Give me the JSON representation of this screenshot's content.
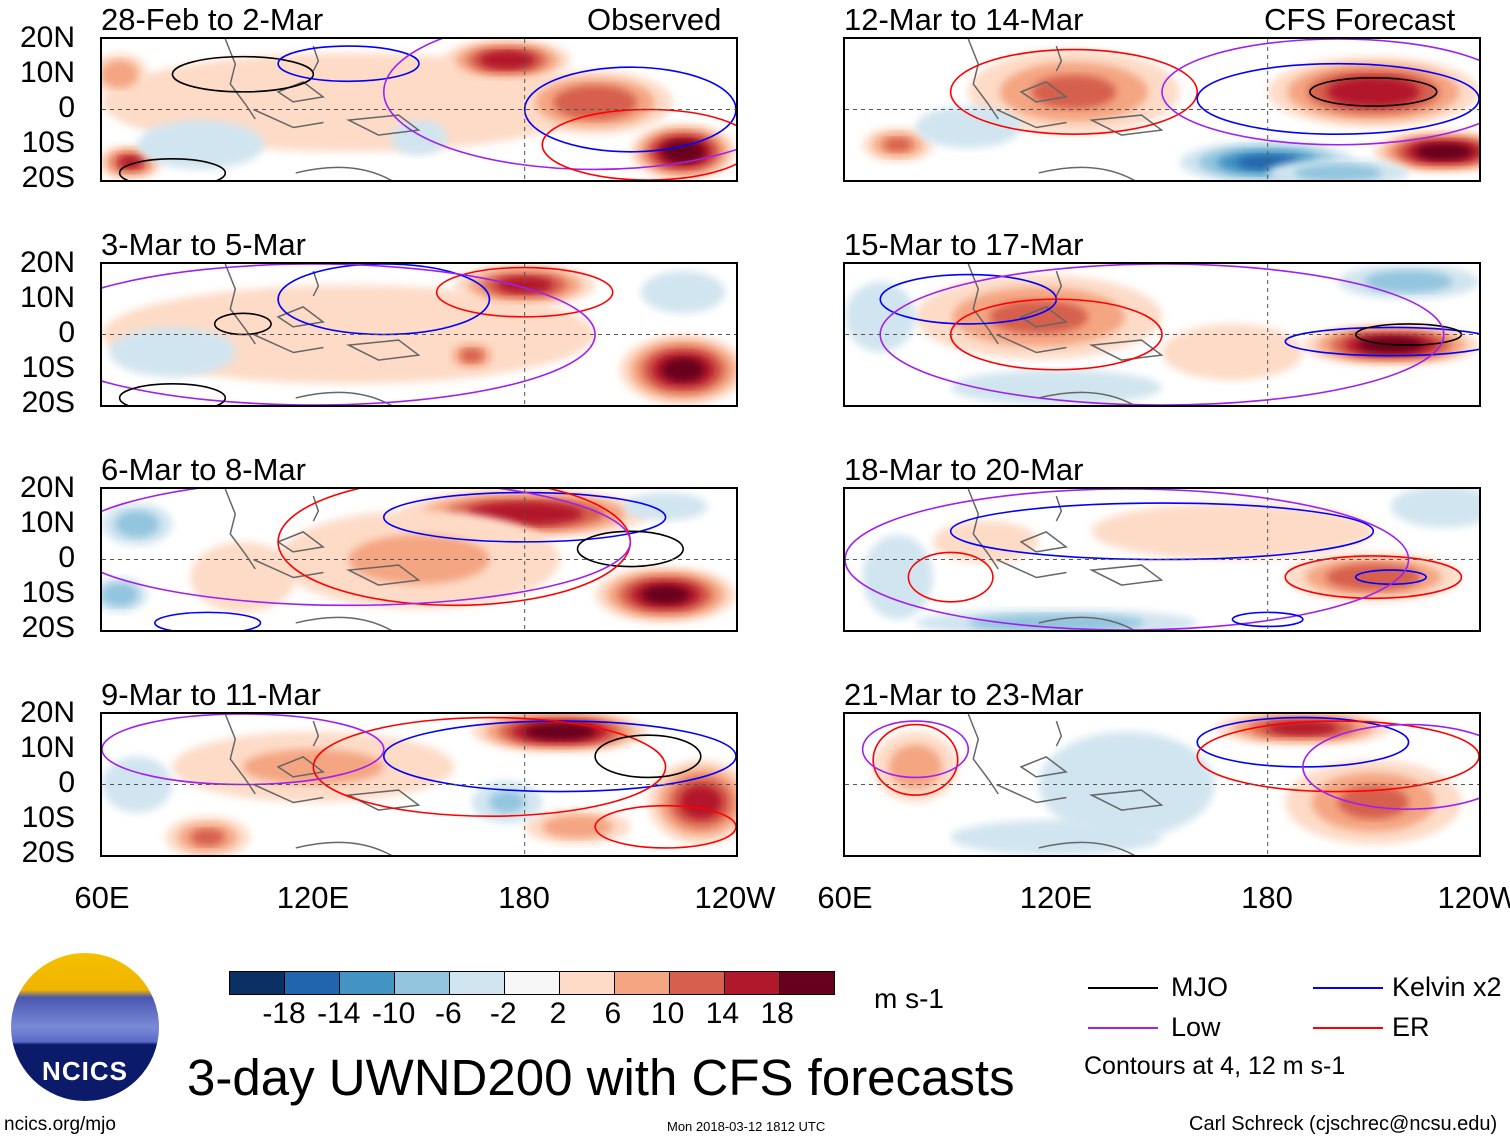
{
  "title": "3-day UWND200 with CFS forecasts",
  "units": "m s-1",
  "logo_text": "NCICS",
  "site": "ncics.org/mjo",
  "timestamp": "Mon 2018-03-12 1812 UTC",
  "author": "Carl Schreck (cjschrec@ncsu.edu)",
  "contour_note": "Contours at 4, 12 m s-1",
  "headers": {
    "observed": "Observed",
    "forecast": "CFS Forecast"
  },
  "legend": [
    {
      "label": "MJO",
      "color": "#000000"
    },
    {
      "label": "Kelvin x2",
      "color": "#0000ff"
    },
    {
      "label": "Low",
      "color": "#a020f0"
    },
    {
      "label": "ER",
      "color": "#ff0000"
    }
  ],
  "colorbar": {
    "labels": [
      "-18",
      "-14",
      "-10",
      "-6",
      "-2",
      "2",
      "6",
      "10",
      "14",
      "18"
    ],
    "colors": [
      "#0a2f62",
      "#2166ac",
      "#4393c3",
      "#92c5de",
      "#d1e5f0",
      "#f7f7f7",
      "#fddbc7",
      "#f4a582",
      "#d6604d",
      "#b2182b",
      "#67001f"
    ]
  },
  "lat_labels": [
    "20N",
    "10N",
    "0",
    "10S",
    "20S"
  ],
  "lon_labels": [
    "60E",
    "120E",
    "180",
    "120W"
  ],
  "chart_data": {
    "type": "heatmap",
    "xlim": [
      60,
      240
    ],
    "ylim": [
      -20,
      20
    ],
    "panels": [
      {
        "title": "28-Feb to 2-Mar",
        "blobs": [
          [
            130,
            2,
            70,
            14,
            5
          ],
          [
            175,
            14,
            18,
            6,
            16
          ],
          [
            200,
            2,
            22,
            9,
            13
          ],
          [
            225,
            -12,
            15,
            8,
            20
          ],
          [
            68,
            -15,
            9,
            5,
            14
          ],
          [
            65,
            10,
            8,
            6,
            9
          ],
          [
            88,
            -10,
            18,
            7,
            -4
          ],
          [
            150,
            -8,
            8,
            5,
            -3
          ]
        ],
        "contours": [
          [
            100,
            10,
            20,
            5,
            "k"
          ],
          [
            130,
            13,
            20,
            5,
            "b"
          ],
          [
            210,
            0,
            30,
            12,
            "b"
          ],
          [
            200,
            5,
            60,
            22,
            "p"
          ],
          [
            215,
            -10,
            30,
            10,
            "r"
          ],
          [
            80,
            -18,
            15,
            4,
            "k"
          ]
        ]
      },
      {
        "title": "3-Mar to 5-Mar",
        "blobs": [
          [
            130,
            0,
            70,
            14,
            4
          ],
          [
            180,
            14,
            20,
            6,
            15
          ],
          [
            225,
            -10,
            18,
            10,
            18
          ],
          [
            165,
            -6,
            8,
            5,
            10
          ],
          [
            80,
            -5,
            18,
            7,
            -4
          ],
          [
            225,
            12,
            12,
            6,
            -5
          ]
        ],
        "contours": [
          [
            180,
            12,
            25,
            7,
            "r"
          ],
          [
            140,
            10,
            30,
            10,
            "b"
          ],
          [
            120,
            0,
            80,
            20,
            "p"
          ],
          [
            80,
            -18,
            15,
            4,
            "k"
          ],
          [
            100,
            3,
            8,
            3,
            "k"
          ]
        ]
      },
      {
        "title": "6-Mar to 8-Mar",
        "blobs": [
          [
            180,
            13,
            35,
            7,
            17
          ],
          [
            220,
            -10,
            20,
            8,
            18
          ],
          [
            150,
            0,
            40,
            14,
            6
          ],
          [
            70,
            10,
            10,
            6,
            -8
          ],
          [
            65,
            -10,
            8,
            5,
            -9
          ],
          [
            220,
            15,
            12,
            4,
            -4
          ],
          [
            100,
            -5,
            15,
            10,
            3
          ]
        ],
        "contours": [
          [
            180,
            12,
            40,
            7,
            "b"
          ],
          [
            210,
            3,
            15,
            5,
            "k"
          ],
          [
            160,
            5,
            50,
            18,
            "r"
          ],
          [
            130,
            5,
            80,
            18,
            "p"
          ],
          [
            90,
            -18,
            15,
            3,
            "b"
          ]
        ]
      },
      {
        "title": "9-Mar to 11-Mar",
        "blobs": [
          [
            190,
            15,
            25,
            6,
            20
          ],
          [
            230,
            -5,
            15,
            12,
            15
          ],
          [
            120,
            5,
            40,
            10,
            6
          ],
          [
            90,
            -15,
            12,
            6,
            10
          ],
          [
            195,
            -12,
            15,
            5,
            9
          ],
          [
            70,
            0,
            10,
            8,
            -5
          ],
          [
            175,
            -5,
            10,
            6,
            -6
          ]
        ],
        "contours": [
          [
            190,
            8,
            50,
            10,
            "b"
          ],
          [
            170,
            5,
            50,
            14,
            "r"
          ],
          [
            215,
            8,
            15,
            6,
            "k"
          ],
          [
            100,
            10,
            40,
            10,
            "p"
          ],
          [
            220,
            -12,
            20,
            6,
            "r"
          ]
        ]
      },
      {
        "title": "12-Mar to 14-Mar",
        "blobs": [
          [
            125,
            5,
            30,
            12,
            10
          ],
          [
            210,
            5,
            30,
            10,
            16
          ],
          [
            230,
            -12,
            20,
            6,
            20
          ],
          [
            75,
            -10,
            10,
            5,
            10
          ],
          [
            180,
            -15,
            25,
            6,
            -14
          ],
          [
            200,
            -18,
            20,
            4,
            -8
          ],
          [
            95,
            -5,
            15,
            6,
            -3
          ]
        ],
        "contours": [
          [
            125,
            5,
            35,
            12,
            "r"
          ],
          [
            200,
            3,
            40,
            10,
            "b"
          ],
          [
            210,
            5,
            18,
            4,
            "k"
          ],
          [
            200,
            5,
            50,
            15,
            "p"
          ]
        ]
      },
      {
        "title": "15-Mar to 17-Mar",
        "blobs": [
          [
            115,
            5,
            35,
            12,
            10
          ],
          [
            215,
            -3,
            25,
            6,
            19
          ],
          [
            220,
            15,
            20,
            5,
            -8
          ],
          [
            120,
            -15,
            30,
            5,
            -4
          ],
          [
            70,
            5,
            10,
            10,
            -4
          ],
          [
            170,
            -5,
            20,
            8,
            4
          ]
        ],
        "contours": [
          [
            95,
            10,
            25,
            7,
            "b"
          ],
          [
            120,
            0,
            30,
            10,
            "r"
          ],
          [
            215,
            -2,
            30,
            4,
            "b"
          ],
          [
            220,
            0,
            15,
            3,
            "k"
          ],
          [
            150,
            0,
            80,
            20,
            "p"
          ]
        ]
      },
      {
        "title": "18-Mar to 20-Mar",
        "blobs": [
          [
            210,
            -5,
            25,
            7,
            13
          ],
          [
            170,
            8,
            40,
            8,
            5
          ],
          [
            120,
            -18,
            40,
            4,
            -8
          ],
          [
            230,
            15,
            15,
            6,
            -3
          ],
          [
            75,
            -5,
            10,
            12,
            -4
          ],
          [
            100,
            5,
            15,
            6,
            4
          ]
        ],
        "contours": [
          [
            150,
            8,
            60,
            8,
            "b"
          ],
          [
            210,
            -5,
            25,
            6,
            "r"
          ],
          [
            215,
            -5,
            10,
            2,
            "b"
          ],
          [
            90,
            -5,
            12,
            7,
            "r"
          ],
          [
            140,
            0,
            80,
            20,
            "p"
          ],
          [
            180,
            -17,
            10,
            2,
            "b"
          ]
        ]
      },
      {
        "title": "21-Mar to 23-Mar",
        "blobs": [
          [
            190,
            16,
            25,
            5,
            15
          ],
          [
            210,
            -5,
            25,
            12,
            10
          ],
          [
            80,
            5,
            12,
            10,
            8
          ],
          [
            140,
            0,
            25,
            15,
            -4
          ],
          [
            120,
            -15,
            30,
            5,
            -4
          ]
        ],
        "contours": [
          [
            190,
            12,
            30,
            7,
            "b"
          ],
          [
            200,
            8,
            40,
            10,
            "r"
          ],
          [
            80,
            7,
            12,
            10,
            "r"
          ],
          [
            80,
            10,
            15,
            8,
            "p"
          ],
          [
            220,
            5,
            30,
            12,
            "p"
          ]
        ]
      }
    ]
  }
}
